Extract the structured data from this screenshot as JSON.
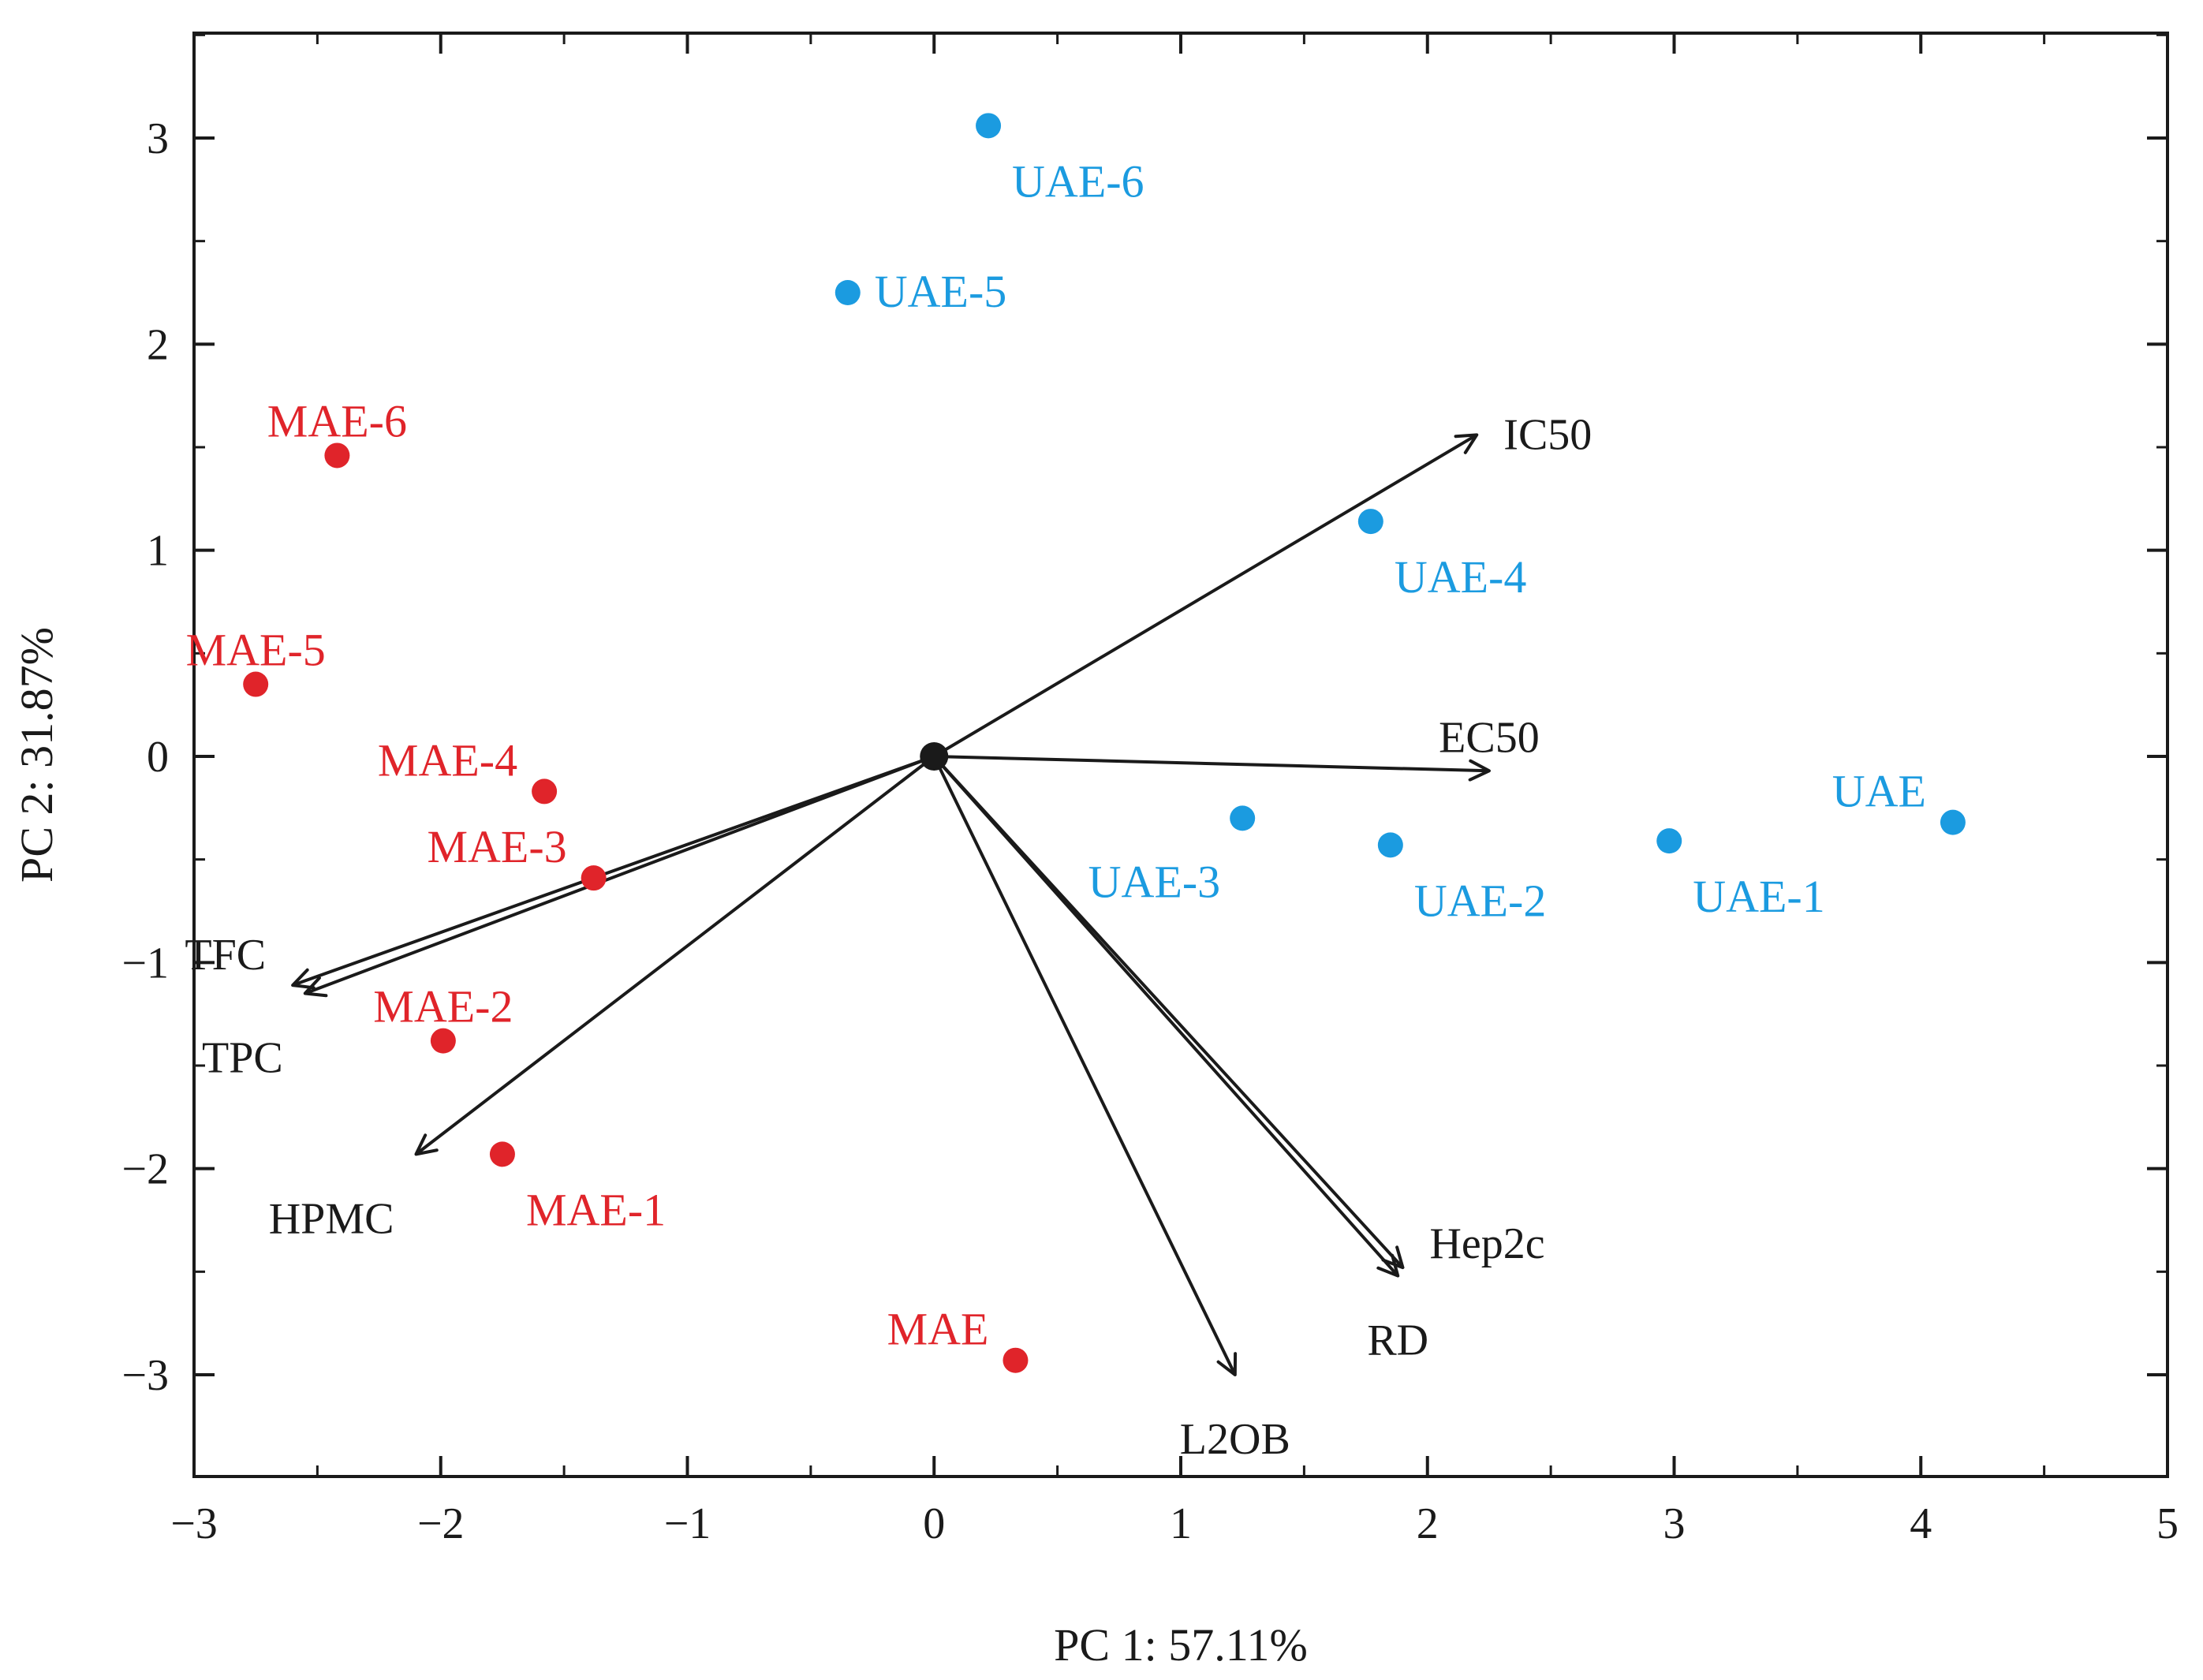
{
  "chart_data": {
    "type": "scatter",
    "subtype": "pca-biplot",
    "xlabel": "PC 1: 57.11%",
    "ylabel": "PC 2: 31.87%",
    "xlim": [
      -3,
      5
    ],
    "ylim": [
      -3.5,
      3.5
    ],
    "xticks": [
      -3,
      -2,
      -1,
      0,
      1,
      2,
      3,
      4,
      5
    ],
    "xtick_labels": [
      "−3",
      "−2",
      "−1",
      "0",
      "1",
      "2",
      "3",
      "4",
      "5"
    ],
    "yticks": [
      -3,
      -2,
      -1,
      0,
      1,
      2,
      3
    ],
    "ytick_labels": [
      "−3",
      "−2",
      "−1",
      "0",
      "1",
      "2",
      "3"
    ],
    "colors": {
      "MAE": "#e0242a",
      "UAE": "#1b9be0",
      "axis": "#1a1a1a"
    },
    "series": [
      {
        "name": "MAE",
        "color": "#e0242a",
        "points": [
          {
            "label": "MAE",
            "x": 0.33,
            "y": -2.93,
            "label_side": "above-left"
          },
          {
            "label": "MAE-1",
            "x": -1.75,
            "y": -1.93,
            "label_side": "below-right"
          },
          {
            "label": "MAE-2",
            "x": -1.99,
            "y": -1.38,
            "label_side": "above"
          },
          {
            "label": "MAE-3",
            "x": -1.38,
            "y": -0.59,
            "label_side": "above-left"
          },
          {
            "label": "MAE-4",
            "x": -1.58,
            "y": -0.17,
            "label_side": "above-left"
          },
          {
            "label": "MAE-5",
            "x": -2.75,
            "y": 0.35,
            "label_side": "above"
          },
          {
            "label": "MAE-6",
            "x": -2.42,
            "y": 1.46,
            "label_side": "above"
          }
        ]
      },
      {
        "name": "UAE",
        "color": "#1b9be0",
        "points": [
          {
            "label": "UAE",
            "x": 4.13,
            "y": -0.32,
            "label_side": "above-left"
          },
          {
            "label": "UAE-1",
            "x": 2.98,
            "y": -0.41,
            "label_side": "below-right"
          },
          {
            "label": "UAE-2",
            "x": 1.85,
            "y": -0.43,
            "label_side": "below-right"
          },
          {
            "label": "UAE-3",
            "x": 1.25,
            "y": -0.3,
            "label_side": "below-left"
          },
          {
            "label": "UAE-4",
            "x": 1.77,
            "y": 1.14,
            "label_side": "below-right"
          },
          {
            "label": "UAE-5",
            "x": -0.35,
            "y": 2.25,
            "label_side": "right"
          },
          {
            "label": "UAE-6",
            "x": 0.22,
            "y": 3.06,
            "label_side": "below-right"
          }
        ]
      }
    ],
    "loadings": [
      {
        "label": "IC50",
        "x": 2.2,
        "y": 1.56,
        "label_side": "right"
      },
      {
        "label": "EC50",
        "x": 2.25,
        "y": -0.07,
        "label_side": "above"
      },
      {
        "label": "TFC",
        "x": -2.6,
        "y": -1.11,
        "label_side": "above-left"
      },
      {
        "label": "TPC",
        "x": -2.55,
        "y": -1.15,
        "label_side": "below-left"
      },
      {
        "label": "HPMC",
        "x": -2.1,
        "y": -1.93,
        "label_side": "below-left"
      },
      {
        "label": "Hep2c",
        "x": 1.9,
        "y": -2.48,
        "label_side": "above-right"
      },
      {
        "label": "RD",
        "x": 1.88,
        "y": -2.52,
        "label_side": "below"
      },
      {
        "label": "L2OB",
        "x": 1.22,
        "y": -3.0,
        "label_side": "below"
      }
    ]
  }
}
